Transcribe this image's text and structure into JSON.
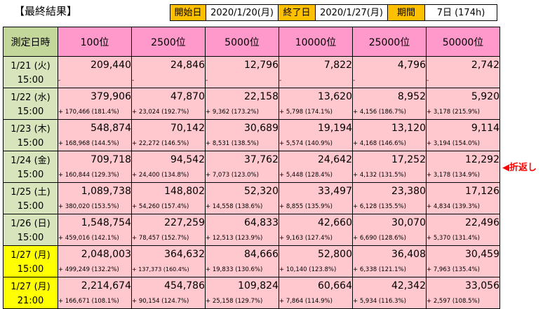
{
  "title": "【最終結果】",
  "info": {
    "start_label": "開始日",
    "start_value": "2020/1/20(月)",
    "end_label": "終了日",
    "end_value": "2020/1/27(月)",
    "period_label": "期間",
    "period_value": "7日 (174h)"
  },
  "header": [
    "測定日時",
    "100位",
    "2500位",
    "5000位",
    "10000位",
    "25000位",
    "50000位"
  ],
  "rows": [
    {
      "date": "1/21 (火)",
      "time": "15:00",
      "highlight": false,
      "values": [
        "209,440",
        "24,846",
        "12,796",
        "7,822",
        "4,796",
        "2,742"
      ],
      "diffs": [
        "-",
        "-",
        "-",
        "-",
        "-",
        "-"
      ]
    },
    {
      "date": "1/22 (水)",
      "time": "15:00",
      "highlight": false,
      "values": [
        "379,906",
        "47,870",
        "22,158",
        "13,620",
        "8,952",
        "5,920"
      ],
      "diffs": [
        "+ 170,466 (181.4%)",
        "+ 23,024 (192.7%)",
        "+ 9,362 (173.2%)",
        "+ 5,798 (174.1%)",
        "+ 4,156 (186.7%)",
        "+ 3,178 (215.9%)"
      ]
    },
    {
      "date": "1/23 (木)",
      "time": "15:00",
      "highlight": false,
      "values": [
        "548,874",
        "70,142",
        "30,689",
        "19,194",
        "13,120",
        "9,114"
      ],
      "diffs": [
        "+ 168,968 (144.5%)",
        "+ 22,272 (146.5%)",
        "+ 8,531 (138.5%)",
        "+ 5,574 (140.9%)",
        "+ 4,168 (146.6%)",
        "+ 3,194 (154.0%)"
      ]
    },
    {
      "date": "1/24 (金)",
      "time": "15:00",
      "highlight": false,
      "values": [
        "709,718",
        "94,542",
        "37,762",
        "24,642",
        "17,252",
        "12,292"
      ],
      "diffs": [
        "+ 160,844 (129.3%)",
        "+ 24,400 (134.8%)",
        "+ 7,073 (123.0%)",
        "+ 5,448 (128.4%)",
        "+ 4,132 (131.5%)",
        "+ 3,178 (134.9%)"
      ]
    },
    {
      "date": "1/25 (土)",
      "time": "15:00",
      "highlight": false,
      "values": [
        "1,089,738",
        "148,802",
        "52,320",
        "33,497",
        "23,380",
        "17,126"
      ],
      "diffs": [
        "+ 380,020 (153.5%)",
        "+ 54,260 (157.4%)",
        "+ 14,558 (138.6%)",
        "+ 8,855 (135.9%)",
        "+ 6,128 (135.5%)",
        "+ 4,834 (139.3%)"
      ]
    },
    {
      "date": "1/26 (日)",
      "time": "15:00",
      "highlight": false,
      "values": [
        "1,548,754",
        "227,259",
        "64,833",
        "42,660",
        "30,070",
        "22,496"
      ],
      "diffs": [
        "+ 459,016 (142.1%)",
        "+ 78,457 (152.7%)",
        "+ 12,513 (123.9%)",
        "+ 9,163 (127.4%)",
        "+ 6,690 (128.6%)",
        "+ 5,370 (131.4%)"
      ]
    },
    {
      "date": "1/27 (月)",
      "time": "15:00",
      "highlight": true,
      "values": [
        "2,048,003",
        "364,632",
        "84,666",
        "52,800",
        "36,408",
        "30,459"
      ],
      "diffs": [
        "+ 499,249 (132.2%)",
        "+ 137,373 (160.4%)",
        "+ 19,833 (130.6%)",
        "+ 10,140 (123.8%)",
        "+ 6,338 (121.1%)",
        "+ 7,963 (135.4%)"
      ]
    },
    {
      "date": "1/27 (月)",
      "time": "21:00",
      "highlight": true,
      "values": [
        "2,214,674",
        "454,786",
        "109,824",
        "60,664",
        "42,342",
        "33,056"
      ],
      "diffs": [
        "+ 166,671 (108.1%)",
        "+ 90,154 (124.7%)",
        "+ 25,158 (129.7%)",
        "+ 7,864 (114.9%)",
        "+ 5,934 (116.3%)",
        "+ 2,597 (108.5%)"
      ]
    }
  ],
  "note": "◀折返し"
}
